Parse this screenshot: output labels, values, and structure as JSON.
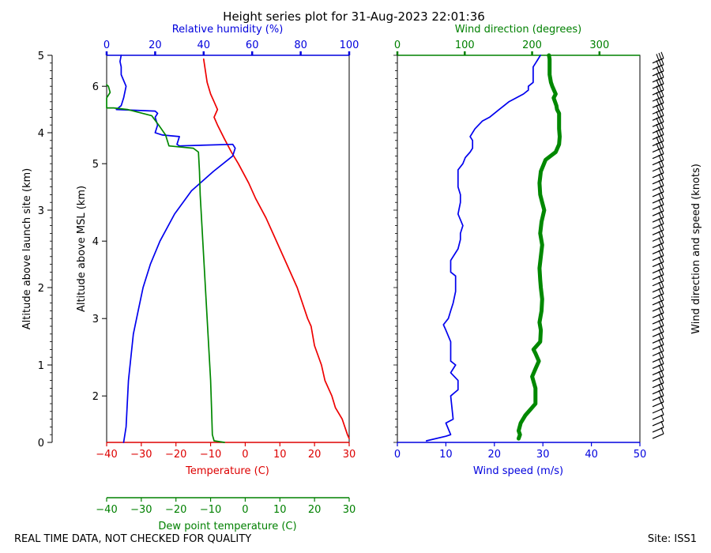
{
  "chart_data": [
    {
      "type": "line",
      "title": "Height series plot for 31-Aug-2023 22:01:36",
      "left_axis": {
        "label": "Altitude above launch site (km)",
        "range": [
          0,
          5
        ],
        "ticks": [
          "0",
          "1",
          "2",
          "3",
          "4",
          "5"
        ]
      },
      "msl_axis": {
        "label": "Altitude above MSL (km)",
        "ticks": [
          "2",
          "3",
          "4",
          "5",
          "6"
        ]
      },
      "bottom_axis": {
        "label": "Temperature (C)",
        "range": [
          -40,
          30
        ],
        "ticks": [
          "−40",
          "−30",
          "−20",
          "−10",
          "0",
          "10",
          "20",
          "30"
        ],
        "color": "#dd0000"
      },
      "top_axis": {
        "label": "Relative humidity (%)",
        "range": [
          0,
          100
        ],
        "ticks": [
          "0",
          "20",
          "40",
          "60",
          "80",
          "100"
        ],
        "color": "#0000dd"
      },
      "dew_axis": {
        "label": "Dew point temperature (C)",
        "range": [
          -40,
          30
        ],
        "ticks": [
          "−40",
          "−30",
          "−20",
          "−10",
          "0",
          "10",
          "20",
          "30"
        ],
        "color": "#008000"
      },
      "series": [
        {
          "name": "Temperature",
          "color": "#ee0000",
          "axis": "bottom",
          "x": [
            30,
            29.5,
            28,
            26,
            25,
            23,
            22,
            20,
            19,
            18,
            15,
            12,
            10,
            8,
            6,
            3,
            1,
            -2,
            -4,
            -6,
            -8,
            -9,
            -8,
            -9,
            -10,
            -11,
            -11.5,
            -12
          ],
          "y": [
            0.05,
            0.1,
            0.3,
            0.45,
            0.6,
            0.8,
            1.0,
            1.25,
            1.5,
            1.6,
            2.0,
            2.3,
            2.5,
            2.7,
            2.9,
            3.15,
            3.35,
            3.6,
            3.75,
            3.92,
            4.1,
            4.2,
            4.3,
            4.4,
            4.5,
            4.65,
            4.8,
            4.95
          ]
        },
        {
          "name": "Relative humidity",
          "color": "#0000ee",
          "axis": "top",
          "x": [
            7,
            8,
            8.5,
            9,
            10,
            11,
            13,
            15,
            18,
            22,
            28,
            35,
            44,
            52,
            53,
            52,
            30,
            29,
            30,
            23,
            20,
            21,
            20,
            21,
            20,
            4,
            6,
            7,
            8,
            6,
            6,
            5.5,
            6
          ],
          "y": [
            0.0,
            0.2,
            0.5,
            0.8,
            1.1,
            1.4,
            1.7,
            2.0,
            2.3,
            2.6,
            2.95,
            3.25,
            3.5,
            3.7,
            3.8,
            3.85,
            3.83,
            3.85,
            3.95,
            3.97,
            4.0,
            4.1,
            4.2,
            4.25,
            4.28,
            4.3,
            4.35,
            4.45,
            4.6,
            4.75,
            4.85,
            4.92,
            5.0
          ]
        },
        {
          "name": "Dew point",
          "color": "#008800",
          "axis": "dew",
          "x": [
            -6,
            -9,
            -9.5,
            -9.7,
            -10,
            -10.5,
            -11,
            -11.5,
            -12,
            -12.5,
            -13,
            -13.2,
            -13.5,
            -15,
            -22,
            -23,
            -25,
            -27,
            -34,
            -38,
            -40,
            -40,
            -39,
            -39.5,
            -40
          ],
          "y": [
            0.0,
            0.02,
            0.1,
            0.4,
            0.8,
            1.2,
            1.6,
            2.0,
            2.4,
            2.8,
            3.2,
            3.5,
            3.75,
            3.8,
            3.83,
            3.97,
            4.1,
            4.22,
            4.3,
            4.32,
            4.32,
            4.45,
            4.52,
            4.6,
            4.62
          ]
        }
      ]
    },
    {
      "type": "line",
      "bottom_axis": {
        "label": "Wind speed (m/s)",
        "range": [
          0,
          50
        ],
        "ticks": [
          "0",
          "10",
          "20",
          "30",
          "40",
          "50"
        ],
        "color": "#0000dd"
      },
      "top_axis": {
        "label": "Wind direction (degrees)",
        "range": [
          0,
          360
        ],
        "ticks": [
          "0",
          "100",
          "200",
          "300"
        ],
        "color": "#008000"
      },
      "series": [
        {
          "name": "Wind speed",
          "color": "#0000ee",
          "axis": "bottom",
          "x": [
            6,
            10,
            11,
            10,
            11.5,
            11,
            12.5,
            12.5,
            11,
            12,
            11,
            11,
            11,
            10,
            9.5,
            10.5,
            11,
            11.5,
            12,
            12,
            11,
            11,
            12.5,
            13,
            13,
            13.5,
            12.5,
            13,
            13,
            12.5,
            12.5,
            12.5,
            13.5,
            14,
            15,
            15.5,
            15.5,
            15,
            16,
            17.5,
            19,
            21,
            23,
            26,
            27,
            27,
            28,
            28,
            28,
            29,
            29.5,
            28.5
          ],
          "y": [
            0.02,
            0.08,
            0.1,
            0.25,
            0.3,
            0.6,
            0.68,
            0.8,
            0.9,
            1.0,
            1.05,
            1.15,
            1.3,
            1.45,
            1.52,
            1.6,
            1.7,
            1.8,
            1.95,
            2.15,
            2.2,
            2.35,
            2.5,
            2.62,
            2.7,
            2.8,
            2.95,
            3.1,
            3.2,
            3.3,
            3.4,
            3.52,
            3.6,
            3.68,
            3.75,
            3.8,
            3.9,
            3.95,
            4.05,
            4.15,
            4.2,
            4.3,
            4.4,
            4.5,
            4.55,
            4.6,
            4.65,
            4.75,
            4.85,
            4.95,
            5.0,
            4.9
          ]
        },
        {
          "name": "Wind direction",
          "color": "#008800",
          "axis": "top",
          "thick": true,
          "x": [
            180,
            182,
            180,
            183,
            190,
            200,
            205,
            205,
            200,
            205,
            210,
            205,
            202,
            212,
            213,
            211,
            214,
            215,
            213,
            212,
            211,
            213,
            215,
            212,
            214,
            218,
            215,
            212,
            211,
            213,
            220,
            235,
            240,
            241,
            240,
            240,
            240,
            237,
            236,
            232,
            235,
            230,
            228,
            226,
            226,
            226,
            225
          ],
          "y": [
            0.05,
            0.1,
            0.15,
            0.25,
            0.35,
            0.45,
            0.5,
            0.7,
            0.85,
            0.95,
            1.05,
            1.15,
            1.2,
            1.3,
            1.45,
            1.55,
            1.7,
            1.85,
            2.0,
            2.1,
            2.25,
            2.4,
            2.55,
            2.7,
            2.85,
            3.0,
            3.1,
            3.2,
            3.35,
            3.5,
            3.65,
            3.75,
            3.85,
            3.95,
            4.05,
            4.15,
            4.25,
            4.3,
            4.35,
            4.45,
            4.5,
            4.6,
            4.65,
            4.75,
            4.85,
            4.95,
            5.0
          ]
        }
      ]
    }
  ],
  "barbs": {
    "label": "Wind direction and speed (knots)"
  },
  "footer": {
    "quality_note": "REAL TIME DATA, NOT CHECKED FOR QUALITY",
    "site": "Site: ISS1"
  }
}
